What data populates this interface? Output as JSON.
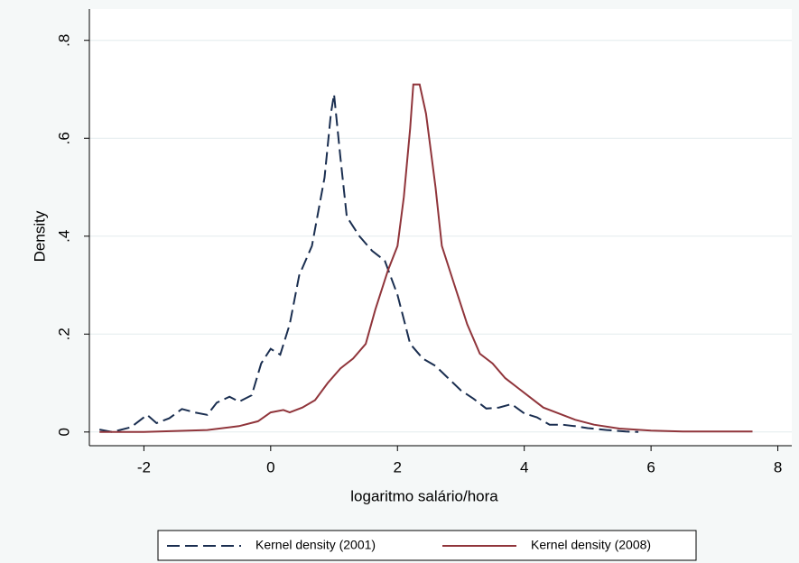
{
  "chart_data": {
    "type": "line",
    "x_label": "logaritmo salário/hora",
    "y_label": "Density",
    "xlim": [
      -2.86,
      8.22
    ],
    "ylim": [
      -0.028,
      0.864
    ],
    "xticks": [
      -2,
      0,
      2,
      4,
      6,
      8
    ],
    "yticks": [
      0,
      {
        "value": 0.2,
        "label": ".2"
      },
      {
        "value": 0.4,
        "label": ".4"
      },
      {
        "value": 0.6,
        "label": ".6"
      },
      {
        "value": 0.8,
        "label": ".8"
      }
    ],
    "grid": true,
    "legend": "bottom",
    "series": [
      {
        "name": "Kernel density (2001)",
        "color": "#1a2e50",
        "dash": true,
        "x": [
          -2.7,
          -2.5,
          -2.2,
          -1.95,
          -1.8,
          -1.6,
          -1.4,
          -1.2,
          -1.0,
          -0.85,
          -0.65,
          -0.5,
          -0.3,
          -0.15,
          0.0,
          0.15,
          0.3,
          0.45,
          0.65,
          0.85,
          0.95,
          1.0,
          1.1,
          1.2,
          1.4,
          1.6,
          1.8,
          2.0,
          2.2,
          2.4,
          2.6,
          2.8,
          3.0,
          3.2,
          3.4,
          3.6,
          3.8,
          4.0,
          4.2,
          4.4,
          4.6,
          4.8,
          5.0,
          5.3,
          5.6,
          5.8
        ],
        "values": [
          0.005,
          0.0,
          0.01,
          0.035,
          0.018,
          0.028,
          0.047,
          0.04,
          0.035,
          0.06,
          0.072,
          0.062,
          0.075,
          0.14,
          0.17,
          0.158,
          0.22,
          0.32,
          0.38,
          0.52,
          0.65,
          0.69,
          0.56,
          0.44,
          0.4,
          0.37,
          0.35,
          0.28,
          0.18,
          0.15,
          0.135,
          0.11,
          0.085,
          0.068,
          0.048,
          0.05,
          0.057,
          0.038,
          0.03,
          0.015,
          0.015,
          0.012,
          0.008,
          0.004,
          0.001,
          0.0
        ]
      },
      {
        "name": "Kernel density (2008)",
        "color": "#90353b",
        "dash": false,
        "x": [
          -2.7,
          -2.0,
          -1.0,
          -0.5,
          -0.2,
          0.0,
          0.2,
          0.3,
          0.5,
          0.7,
          0.9,
          1.1,
          1.3,
          1.5,
          1.65,
          1.85,
          2.0,
          2.1,
          2.2,
          2.25,
          2.35,
          2.45,
          2.6,
          2.7,
          2.9,
          3.1,
          3.3,
          3.5,
          3.7,
          3.9,
          4.1,
          4.3,
          4.5,
          4.8,
          5.1,
          5.5,
          6.0,
          6.5,
          7.6
        ],
        "values": [
          0.0,
          0.0,
          0.004,
          0.012,
          0.022,
          0.04,
          0.045,
          0.04,
          0.05,
          0.065,
          0.1,
          0.13,
          0.15,
          0.18,
          0.25,
          0.33,
          0.38,
          0.48,
          0.62,
          0.71,
          0.71,
          0.65,
          0.5,
          0.38,
          0.3,
          0.22,
          0.16,
          0.14,
          0.11,
          0.09,
          0.07,
          0.05,
          0.04,
          0.025,
          0.015,
          0.007,
          0.003,
          0.001,
          0.001
        ]
      }
    ]
  }
}
